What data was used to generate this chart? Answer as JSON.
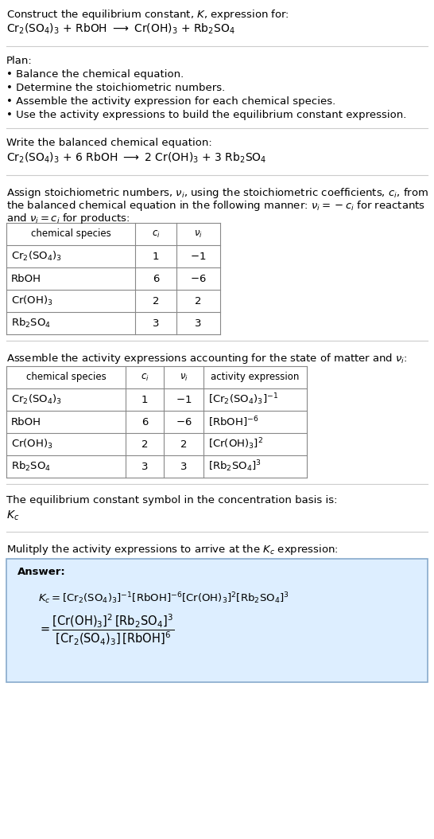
{
  "title_line1": "Construct the equilibrium constant, $K$, expression for:",
  "title_line2": "$\\mathrm{Cr_2(SO_4)_3}$ + RbOH $\\longrightarrow$ $\\mathrm{Cr(OH)_3}$ + $\\mathrm{Rb_2SO_4}$",
  "plan_header": "Plan:",
  "plan_items": [
    "• Balance the chemical equation.",
    "• Determine the stoichiometric numbers.",
    "• Assemble the activity expression for each chemical species.",
    "• Use the activity expressions to build the equilibrium constant expression."
  ],
  "balanced_header": "Write the balanced chemical equation:",
  "balanced_eq": "$\\mathrm{Cr_2(SO_4)_3}$ + 6 RbOH $\\longrightarrow$ 2 $\\mathrm{Cr(OH)_3}$ + 3 $\\mathrm{Rb_2SO_4}$",
  "stoich_line1": "Assign stoichiometric numbers, $\\nu_i$, using the stoichiometric coefficients, $c_i$, from",
  "stoich_line2": "the balanced chemical equation in the following manner: $\\nu_i = -c_i$ for reactants",
  "stoich_line3": "and $\\nu_i = c_i$ for products:",
  "table1_headers": [
    "chemical species",
    "$c_i$",
    "$\\nu_i$"
  ],
  "table1_rows": [
    [
      "$\\mathrm{Cr_2(SO_4)_3}$",
      "1",
      "$-1$"
    ],
    [
      "RbOH",
      "6",
      "$-6$"
    ],
    [
      "$\\mathrm{Cr(OH)_3}$",
      "2",
      "2"
    ],
    [
      "$\\mathrm{Rb_2SO_4}$",
      "3",
      "3"
    ]
  ],
  "activity_header": "Assemble the activity expressions accounting for the state of matter and $\\nu_i$:",
  "table2_headers": [
    "chemical species",
    "$c_i$",
    "$\\nu_i$",
    "activity expression"
  ],
  "table2_rows": [
    [
      "$\\mathrm{Cr_2(SO_4)_3}$",
      "1",
      "$-1$",
      "$[\\mathrm{Cr_2(SO_4)_3}]^{-1}$"
    ],
    [
      "RbOH",
      "6",
      "$-6$",
      "$[\\mathrm{RbOH}]^{-6}$"
    ],
    [
      "$\\mathrm{Cr(OH)_3}$",
      "2",
      "2",
      "$[\\mathrm{Cr(OH)_3}]^{2}$"
    ],
    [
      "$\\mathrm{Rb_2SO_4}$",
      "3",
      "3",
      "$[\\mathrm{Rb_2SO_4}]^{3}$"
    ]
  ],
  "kc_header": "The equilibrium constant symbol in the concentration basis is:",
  "kc_symbol": "$K_c$",
  "multiply_header": "Mulitply the activity expressions to arrive at the $K_c$ expression:",
  "answer_label": "Answer:",
  "answer_line1": "$K_c = [\\mathrm{Cr_2(SO_4)_3}]^{-1} [\\mathrm{RbOH}]^{-6} [\\mathrm{Cr(OH)_3}]^{2} [\\mathrm{Rb_2SO_4}]^{3}$",
  "answer_eq": "$= \\dfrac{[\\mathrm{Cr(OH)_3}]^{2}\\,[\\mathrm{Rb_2SO_4}]^{3}}{[\\mathrm{Cr_2(SO_4)_3}]\\,[\\mathrm{RbOH}]^{6}}$",
  "bg_color": "#ffffff",
  "answer_box_color": "#ddeeff",
  "answer_box_border": "#88aacc",
  "table_border_color": "#888888",
  "text_color": "#000000",
  "font_size": 9.5,
  "line_color": "#cccccc"
}
